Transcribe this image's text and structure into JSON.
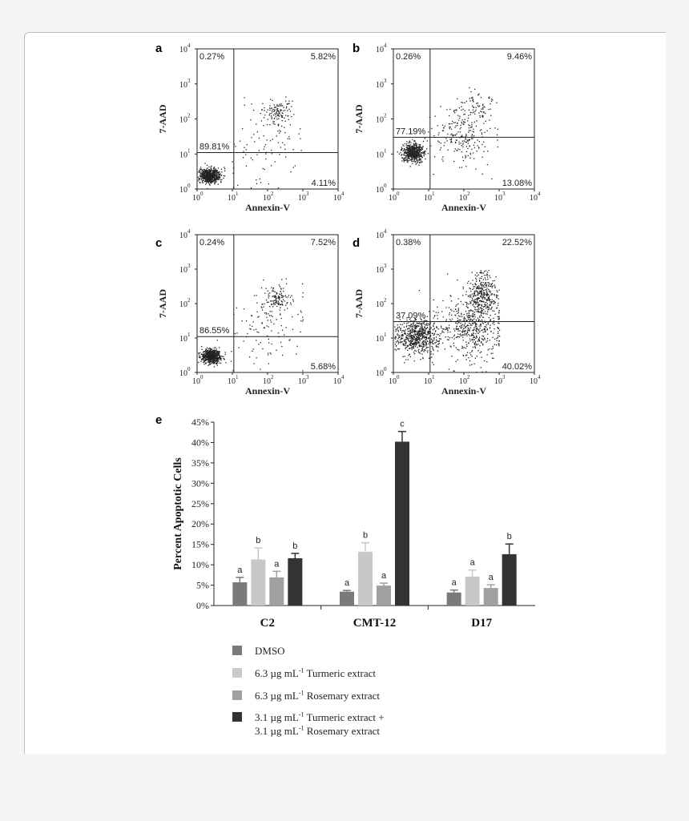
{
  "colors": {
    "page_bg": "#f5f5f5",
    "card_bg": "#ffffff",
    "dmso": "#7a7a7a",
    "turmeric": "#c8c8c8",
    "rosemary": "#a0a0a0",
    "combo": "#333333",
    "dots": "#222222"
  },
  "chart_data": [
    {
      "type": "scatter",
      "panel_label": "a",
      "xlabel": "Annexin-V",
      "ylabel": "7-AAD",
      "scale": "log",
      "xlim": [
        1,
        10000
      ],
      "ylim": [
        1,
        10000
      ],
      "x_ticks": [
        "10",
        "10",
        "10",
        "10",
        "10"
      ],
      "x_tick_exps": [
        "0",
        "1",
        "2",
        "3",
        "4"
      ],
      "y_ticks": [
        "10",
        "10",
        "10",
        "10",
        "10"
      ],
      "y_tick_exps": [
        "0",
        "1",
        "2",
        "3",
        "4"
      ],
      "gate_x": 11,
      "gate_y": 11,
      "quadrants": {
        "upper_left": "0.27%",
        "upper_right": "5.82%",
        "lower_left": "89.81%",
        "lower_right": "4.11%"
      }
    },
    {
      "type": "scatter",
      "panel_label": "b",
      "xlabel": "Annexin-V",
      "ylabel": "7-AAD",
      "scale": "log",
      "xlim": [
        1,
        10000
      ],
      "ylim": [
        1,
        10000
      ],
      "x_ticks": [
        "10",
        "10",
        "10",
        "10",
        "10"
      ],
      "x_tick_exps": [
        "0",
        "1",
        "2",
        "3",
        "4"
      ],
      "y_ticks": [
        "10",
        "10",
        "10",
        "10",
        "10"
      ],
      "y_tick_exps": [
        "0",
        "1",
        "2",
        "3",
        "4"
      ],
      "gate_x": 11,
      "gate_y": 30,
      "quadrants": {
        "upper_left": "0.26%",
        "upper_right": "9.46%",
        "lower_left": "77.19%",
        "lower_right": "13.08%"
      }
    },
    {
      "type": "scatter",
      "panel_label": "c",
      "xlabel": "Annexin-V",
      "ylabel": "7-AAD",
      "scale": "log",
      "xlim": [
        1,
        10000
      ],
      "ylim": [
        1,
        10000
      ],
      "x_ticks": [
        "10",
        "10",
        "10",
        "10",
        "10"
      ],
      "x_tick_exps": [
        "0",
        "1",
        "2",
        "3",
        "4"
      ],
      "y_ticks": [
        "10",
        "10",
        "10",
        "10",
        "10"
      ],
      "y_tick_exps": [
        "0",
        "1",
        "2",
        "3",
        "4"
      ],
      "gate_x": 11,
      "gate_y": 11,
      "quadrants": {
        "upper_left": "0.24%",
        "upper_right": "7.52%",
        "lower_left": "86.55%",
        "lower_right": "5.68%"
      }
    },
    {
      "type": "scatter",
      "panel_label": "d",
      "xlabel": "Annexin-V",
      "ylabel": "7-AAD",
      "scale": "log",
      "xlim": [
        1,
        10000
      ],
      "ylim": [
        1,
        10000
      ],
      "x_ticks": [
        "10",
        "10",
        "10",
        "10",
        "10"
      ],
      "x_tick_exps": [
        "0",
        "1",
        "2",
        "3",
        "4"
      ],
      "y_ticks": [
        "10",
        "10",
        "10",
        "10",
        "10"
      ],
      "y_tick_exps": [
        "0",
        "1",
        "2",
        "3",
        "4"
      ],
      "gate_x": 11,
      "gate_y": 30,
      "quadrants": {
        "upper_left": "0.38%",
        "upper_right": "22.52%",
        "lower_left": "37.09%",
        "lower_right": "40.02%"
      }
    },
    {
      "type": "bar",
      "panel_label": "e",
      "ylabel": "Percent Apoptotic Cells",
      "ylim": [
        0,
        45
      ],
      "y_ticks": [
        "0%",
        "5%",
        "10%",
        "15%",
        "20%",
        "25%",
        "30%",
        "35%",
        "40%",
        "45%"
      ],
      "categories": [
        "C2",
        "CMT-12",
        "D17"
      ],
      "series": [
        {
          "name": "DMSO",
          "values": [
            5.7,
            3.4,
            3.2
          ],
          "errors": [
            1.2,
            0.3,
            0.6
          ],
          "letters": [
            "a",
            "a",
            "a"
          ]
        },
        {
          "name": "6.3 µg mL-1 Turmeric extract",
          "values": [
            11.3,
            13.2,
            7.1
          ],
          "errors": [
            2.8,
            2.2,
            1.6
          ],
          "letters": [
            "b",
            "b",
            "a"
          ]
        },
        {
          "name": "6.3 µg mL-1 Rosemary extract",
          "values": [
            6.9,
            4.9,
            4.3
          ],
          "errors": [
            1.5,
            0.6,
            0.8
          ],
          "letters": [
            "a",
            "a",
            "a"
          ]
        },
        {
          "name": "3.1 µg mL-1 Turmeric extract + 3.1 µg mL-1 Rosemary extract",
          "values": [
            11.6,
            40.2,
            12.6
          ],
          "errors": [
            1.2,
            2.5,
            2.5
          ],
          "letters": [
            "b",
            "c",
            "b"
          ]
        }
      ],
      "legend": [
        {
          "line1_pre": "DMSO",
          "sup1": "",
          "line1_post": "",
          "line2_pre": "",
          "sup2": "",
          "line2_post": ""
        },
        {
          "line1_pre": "6.3 µg mL",
          "sup1": "-1",
          "line1_post": " Turmeric extract",
          "line2_pre": "",
          "sup2": "",
          "line2_post": ""
        },
        {
          "line1_pre": "6.3 µg mL",
          "sup1": "-1",
          "line1_post": " Rosemary extract",
          "line2_pre": "",
          "sup2": "",
          "line2_post": ""
        },
        {
          "line1_pre": "3.1 µg mL",
          "sup1": "-1",
          "line1_post": " Turmeric extract +",
          "line2_pre": "3.1 µg mL",
          "sup2": "-1",
          "line2_post": " Rosemary extract"
        }
      ]
    }
  ]
}
